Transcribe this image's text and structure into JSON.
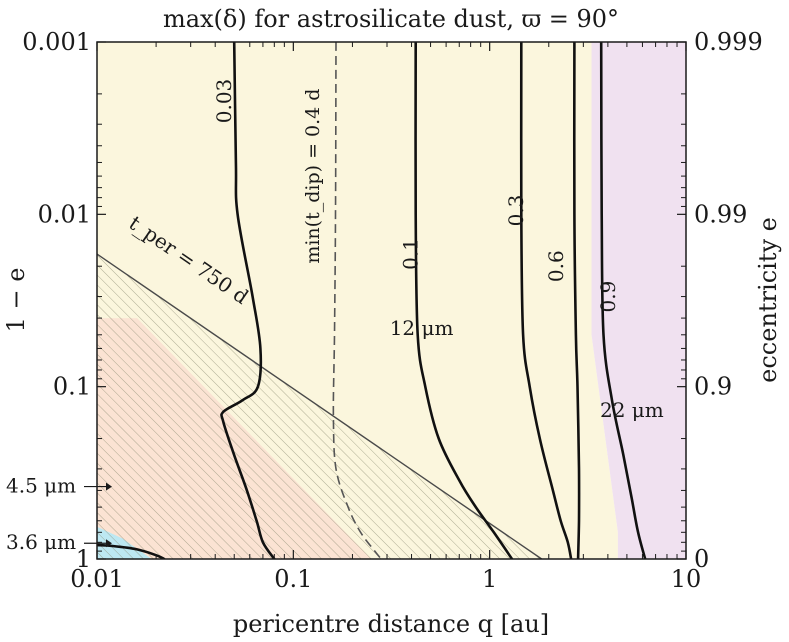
{
  "chart_data": {
    "type": "contour",
    "title": "max(δ) for astrosilicate dust, ϖ = 90°",
    "xlabel": "pericentre distance q [au]",
    "ylabel": "1 − e",
    "y2label": "eccentricity e",
    "xscale": "log",
    "yscale": "log-inverted",
    "xlim": [
      0.01,
      10
    ],
    "ylim": [
      0.001,
      1
    ],
    "x_ticks": [
      {
        "value": 0.01,
        "label": "0.01"
      },
      {
        "value": 0.1,
        "label": "0.1"
      },
      {
        "value": 1,
        "label": "1"
      },
      {
        "value": 10,
        "label": "10"
      }
    ],
    "y_ticks": [
      {
        "value": 0.001,
        "label": "0.001"
      },
      {
        "value": 0.01,
        "label": "0.01"
      },
      {
        "value": 0.1,
        "label": "0.1"
      },
      {
        "value": 1,
        "label": "1"
      }
    ],
    "y2_ticks": [
      {
        "value": 0.001,
        "label": "0.999"
      },
      {
        "value": 0.01,
        "label": "0.99"
      },
      {
        "value": 0.1,
        "label": "0.9"
      },
      {
        "value": 1,
        "label": "0"
      }
    ],
    "regions": [
      {
        "name": "12um",
        "label": "12 μm",
        "color": "#fbf6dd",
        "label_color": "#e8b331",
        "label_at": [
          0.45,
          0.05
        ],
        "polygon": [
          [
            0.01,
            0.001
          ],
          [
            3.3,
            0.001
          ],
          [
            3.3,
            0.05
          ],
          [
            4.5,
            0.7
          ],
          [
            4.5,
            1
          ],
          [
            0.01,
            1
          ]
        ]
      },
      {
        "name": "22um",
        "label": "22 μm",
        "color": "#f0e1f0",
        "label_color": "#8b3f98",
        "label_at": [
          5.3,
          0.15
        ],
        "polygon": [
          [
            3.3,
            0.001
          ],
          [
            10,
            0.001
          ],
          [
            10,
            1
          ],
          [
            4.5,
            1
          ],
          [
            4.5,
            0.7
          ],
          [
            3.3,
            0.05
          ]
        ]
      },
      {
        "name": "4.5um",
        "label": "4.5 μm",
        "color": "#fbe3d3",
        "label_color": "#d65e25",
        "label_tick_y": 0.38,
        "polygon": [
          [
            0.01,
            0.04
          ],
          [
            0.016,
            0.04
          ],
          [
            0.25,
            1
          ],
          [
            0.01,
            1
          ]
        ]
      },
      {
        "name": "3.6um",
        "label": "3.6 μm",
        "color": "#bde8f2",
        "label_color": "#2186b8",
        "label_tick_y": 0.81,
        "polygon": [
          [
            0.01,
            0.65
          ],
          [
            0.0135,
            0.76
          ],
          [
            0.019,
            1
          ],
          [
            0.01,
            1
          ]
        ]
      }
    ],
    "hatch_region": {
      "name": "t_per < 750 d",
      "polygon": [
        [
          0.01,
          0.017
        ],
        [
          1.84,
          1
        ],
        [
          0.01,
          1
        ]
      ]
    },
    "tper_line": {
      "label": "t_per = 750 d",
      "points": [
        [
          0.01,
          0.017
        ],
        [
          1.84,
          1
        ]
      ]
    },
    "tdip_curve": {
      "label": "min(t_dip) = 0.4 d",
      "points": [
        [
          0.165,
          0.001
        ],
        [
          0.164,
          0.01
        ],
        [
          0.162,
          0.05
        ],
        [
          0.16,
          0.15
        ],
        [
          0.165,
          0.3
        ],
        [
          0.19,
          0.5
        ],
        [
          0.22,
          0.7
        ],
        [
          0.26,
          0.9
        ],
        [
          0.28,
          1
        ]
      ]
    },
    "contours": [
      {
        "level": "0.03",
        "label_at": [
          0.045,
          0.0022
        ],
        "points": [
          [
            0.05,
            0.001
          ],
          [
            0.051,
            0.005
          ],
          [
            0.052,
            0.01
          ],
          [
            0.062,
            0.03
          ],
          [
            0.068,
            0.06
          ],
          [
            0.066,
            0.1
          ],
          [
            0.055,
            0.12
          ],
          [
            0.044,
            0.14
          ],
          [
            0.044,
            0.16
          ],
          [
            0.05,
            0.25
          ],
          [
            0.058,
            0.4
          ],
          [
            0.065,
            0.6
          ],
          [
            0.07,
            0.8
          ],
          [
            0.08,
            1
          ]
        ]
      },
      {
        "level": "0.03",
        "label_at": null,
        "points": [
          [
            0.01,
            0.83
          ],
          [
            0.012,
            0.84
          ],
          [
            0.016,
            0.88
          ],
          [
            0.02,
            0.95
          ],
          [
            0.022,
            1
          ]
        ]
      },
      {
        "level": "0.1",
        "label_at": [
          0.4,
          0.017
        ],
        "points": [
          [
            0.42,
            0.001
          ],
          [
            0.42,
            0.01
          ],
          [
            0.43,
            0.05
          ],
          [
            0.47,
            0.1
          ],
          [
            0.55,
            0.2
          ],
          [
            0.7,
            0.35
          ],
          [
            0.85,
            0.5
          ],
          [
            1.05,
            0.7
          ],
          [
            1.3,
            1
          ]
        ]
      },
      {
        "level": "0.3",
        "label_at": [
          1.38,
          0.0095
        ],
        "points": [
          [
            1.45,
            0.001
          ],
          [
            1.45,
            0.01
          ],
          [
            1.48,
            0.05
          ],
          [
            1.6,
            0.1
          ],
          [
            1.8,
            0.2
          ],
          [
            2.1,
            0.4
          ],
          [
            2.3,
            0.6
          ],
          [
            2.5,
            0.8
          ],
          [
            2.6,
            1
          ]
        ]
      },
      {
        "level": "0.6",
        "label_at": [
          2.2,
          0.02
        ],
        "points": [
          [
            2.7,
            0.001
          ],
          [
            2.7,
            0.01
          ],
          [
            2.75,
            0.05
          ],
          [
            2.8,
            0.1
          ],
          [
            2.85,
            0.3
          ],
          [
            2.85,
            0.6
          ],
          [
            2.82,
            1
          ]
        ]
      },
      {
        "level": "0.9",
        "label_at": [
          4.05,
          0.03
        ],
        "points": [
          [
            3.7,
            0.001
          ],
          [
            3.72,
            0.01
          ],
          [
            3.8,
            0.05
          ],
          [
            4.2,
            0.12
          ],
          [
            4.8,
            0.25
          ],
          [
            5.3,
            0.45
          ],
          [
            5.7,
            0.7
          ],
          [
            6.2,
            1
          ]
        ]
      }
    ],
    "annotations": {
      "tper_label": "t_per = 750 d",
      "tdip_label": "min(t_dip) = 0.4 d"
    }
  }
}
